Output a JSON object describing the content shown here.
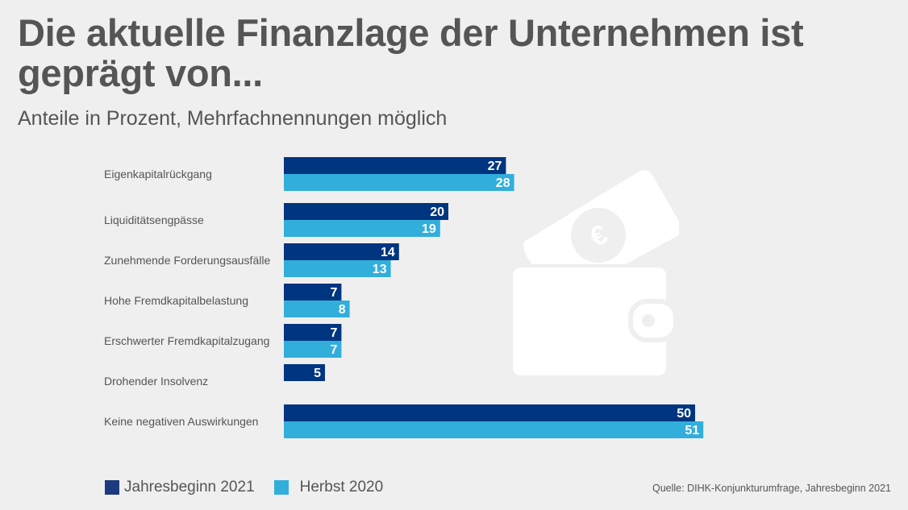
{
  "header": {
    "title": "Die aktuelle Finanzlage der Unternehmen ist geprägt von...",
    "subtitle": "Anteile in Prozent, Mehrfachnennungen möglich"
  },
  "source": "Quelle: DIHK-Konjunkturumfrage, Jahresbeginn 2021",
  "illustration": {
    "icon": "wallet-with-euro-banknote-icon",
    "color": "#ffffff"
  },
  "chart_data": {
    "type": "bar",
    "orientation": "horizontal",
    "title": "Die aktuelle Finanzlage der Unternehmen ist geprägt von...",
    "subtitle": "Anteile in Prozent, Mehrfachnennungen möglich",
    "xlabel": "",
    "ylabel": "",
    "unit": "Prozent",
    "grid": false,
    "legend_position": "bottom-left",
    "categories": [
      "Eigenkapitalrückgang",
      "Liquiditätsengpässe",
      "Zunehmende Forderungsausfälle",
      "Hohe Fremdkapitalbelastung",
      "Erschwerter Fremdkapitalzugang",
      "Drohender Insolvenz",
      "Keine negativen Auswirkungen"
    ],
    "series": [
      {
        "name": "Jahresbeginn 2021",
        "color": "#003580",
        "values": [
          27,
          20,
          14,
          7,
          7,
          5,
          50
        ]
      },
      {
        "name": "Herbst 2020",
        "color": "#32aedb",
        "values": [
          28,
          19,
          13,
          8,
          7,
          null,
          51
        ]
      }
    ],
    "xlim": [
      0,
      51
    ]
  }
}
